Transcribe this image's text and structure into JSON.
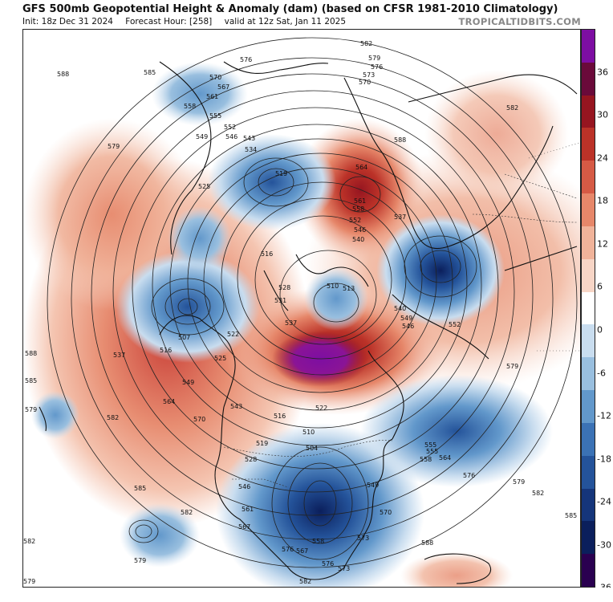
{
  "header": {
    "title": "GFS 500mb Geopotential Height & Anomaly (dam) (based on CFSR 1981-2010 Climatology)",
    "init": "Init: 18z Dec 31 2024",
    "forecast_hour": "Forecast Hour: [258]",
    "valid": "valid at 12z Sat, Jan 11 2025",
    "brand": "TROPICALTIDBITS.COM"
  },
  "colorbar": {
    "ticks": [
      "36",
      "30",
      "24",
      "18",
      "12",
      "6",
      "0",
      "-6",
      "-12",
      "-18",
      "-24",
      "-30",
      "-36"
    ],
    "colors": [
      "#2a0050",
      "#0b1f5c",
      "#15357a",
      "#24539a",
      "#3b72b5",
      "#6298cb",
      "#99bfdf",
      "#c9ddef",
      "#ffffff",
      "#f7d5c6",
      "#f0b39a",
      "#e6876a",
      "#d55a45",
      "#bb3228",
      "#961520",
      "#6a0a3a",
      "#7d0ea2"
    ]
  },
  "contour_labels": [
    "588",
    "585",
    "582",
    "579",
    "576",
    "573",
    "570",
    "567",
    "564",
    "561",
    "558",
    "555",
    "552",
    "549",
    "546",
    "543",
    "540",
    "537",
    "534",
    "531",
    "528",
    "525",
    "522",
    "519",
    "516",
    "513",
    "510",
    "507",
    "504"
  ],
  "map_labels": [
    {
      "text": "588",
      "id": "l1"
    },
    {
      "text": "585",
      "id": "l2"
    },
    {
      "text": "579",
      "id": "l3"
    },
    {
      "text": "576",
      "id": "l4"
    },
    {
      "text": "582",
      "id": "l5"
    },
    {
      "text": "579",
      "id": "l6"
    },
    {
      "text": "576",
      "id": "l7"
    },
    {
      "text": "573",
      "id": "l8"
    },
    {
      "text": "570",
      "id": "l9"
    },
    {
      "text": "570",
      "id": "l10"
    },
    {
      "text": "567",
      "id": "l11"
    },
    {
      "text": "561",
      "id": "l12"
    },
    {
      "text": "558",
      "id": "l13"
    },
    {
      "text": "555",
      "id": "l14"
    },
    {
      "text": "552",
      "id": "l15"
    },
    {
      "text": "549",
      "id": "l16"
    },
    {
      "text": "546",
      "id": "l17"
    },
    {
      "text": "543",
      "id": "l18"
    },
    {
      "text": "534",
      "id": "l19"
    },
    {
      "text": "519",
      "id": "l20"
    },
    {
      "text": "564",
      "id": "l21"
    },
    {
      "text": "561",
      "id": "l22"
    },
    {
      "text": "558",
      "id": "l23"
    },
    {
      "text": "552",
      "id": "l24"
    },
    {
      "text": "546",
      "id": "l25"
    },
    {
      "text": "540",
      "id": "l26"
    },
    {
      "text": "537",
      "id": "l27"
    },
    {
      "text": "525",
      "id": "l28"
    },
    {
      "text": "516",
      "id": "l29"
    },
    {
      "text": "510",
      "id": "l30"
    },
    {
      "text": "513",
      "id": "l31"
    },
    {
      "text": "528",
      "id": "l32"
    },
    {
      "text": "531",
      "id": "l33"
    },
    {
      "text": "537",
      "id": "l34"
    },
    {
      "text": "540",
      "id": "l35"
    },
    {
      "text": "546",
      "id": "l36"
    },
    {
      "text": "549",
      "id": "l37"
    },
    {
      "text": "552",
      "id": "l38"
    },
    {
      "text": "579",
      "id": "l39"
    },
    {
      "text": "582",
      "id": "l40"
    },
    {
      "text": "507",
      "id": "l41"
    },
    {
      "text": "516",
      "id": "l42"
    },
    {
      "text": "522",
      "id": "l43"
    },
    {
      "text": "525",
      "id": "l44"
    },
    {
      "text": "537",
      "id": "l45"
    },
    {
      "text": "543",
      "id": "l46"
    },
    {
      "text": "549",
      "id": "l47"
    },
    {
      "text": "564",
      "id": "l48"
    },
    {
      "text": "570",
      "id": "l49"
    },
    {
      "text": "582",
      "id": "l50"
    },
    {
      "text": "588",
      "id": "l51"
    },
    {
      "text": "585",
      "id": "l52"
    },
    {
      "text": "579",
      "id": "l53"
    },
    {
      "text": "585",
      "id": "l54"
    },
    {
      "text": "582",
      "id": "l55"
    },
    {
      "text": "579",
      "id": "l56"
    },
    {
      "text": "546",
      "id": "l57"
    },
    {
      "text": "549",
      "id": "l58"
    },
    {
      "text": "561",
      "id": "l59"
    },
    {
      "text": "567",
      "id": "l60"
    },
    {
      "text": "570",
      "id": "l61"
    },
    {
      "text": "573",
      "id": "l62"
    },
    {
      "text": "576",
      "id": "l63"
    },
    {
      "text": "558",
      "id": "l64"
    },
    {
      "text": "567",
      "id": "l65"
    },
    {
      "text": "564",
      "id": "l66"
    },
    {
      "text": "555",
      "id": "l67"
    },
    {
      "text": "558",
      "id": "l68"
    },
    {
      "text": "576",
      "id": "l69"
    },
    {
      "text": "579",
      "id": "l70"
    },
    {
      "text": "582",
      "id": "l71"
    },
    {
      "text": "585",
      "id": "l72"
    },
    {
      "text": "588",
      "id": "l73"
    },
    {
      "text": "582",
      "id": "l74"
    },
    {
      "text": "579",
      "id": "l75"
    },
    {
      "text": "510",
      "id": "l76"
    },
    {
      "text": "504",
      "id": "l77"
    },
    {
      "text": "516",
      "id": "l78"
    },
    {
      "text": "519",
      "id": "l79"
    },
    {
      "text": "522",
      "id": "l80"
    },
    {
      "text": "528",
      "id": "l81"
    },
    {
      "text": "555",
      "id": "l82"
    },
    {
      "text": "573",
      "id": "l83"
    },
    {
      "text": "576",
      "id": "l84"
    },
    {
      "text": "582",
      "id": "l85"
    },
    {
      "text": "588",
      "id": "l86"
    }
  ]
}
